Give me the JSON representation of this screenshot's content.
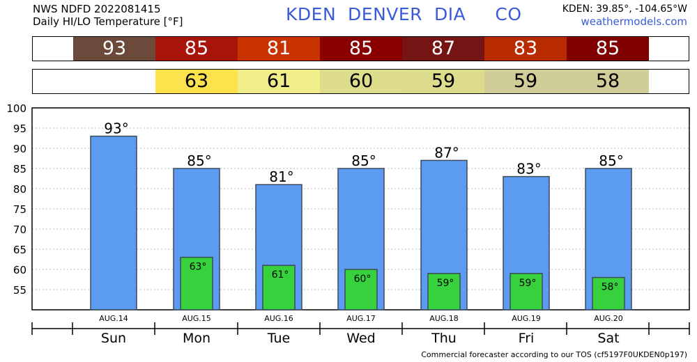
{
  "header": {
    "line1": "NWS NDFD 2022081415",
    "line2": "Daily HI/LO Temperature [°F]",
    "title": "KDEN  DENVER  DIA     CO",
    "coords": "KDEN: 39.85°, -104.65°W",
    "site": "weathermodels.com"
  },
  "hi_strip": [
    {
      "text": "93",
      "color": "#6b4a3c"
    },
    {
      "text": "85",
      "color": "#a8140a"
    },
    {
      "text": "81",
      "color": "#c83200"
    },
    {
      "text": "85",
      "color": "#8a0000"
    },
    {
      "text": "87",
      "color": "#741414"
    },
    {
      "text": "83",
      "color": "#b82a00"
    },
    {
      "text": "85",
      "color": "#800000"
    }
  ],
  "lo_strip": [
    {
      "text": "",
      "color": "#ffffff"
    },
    {
      "text": "63",
      "color": "#fde24e"
    },
    {
      "text": "61",
      "color": "#efee88"
    },
    {
      "text": "60",
      "color": "#dedd8c"
    },
    {
      "text": "59",
      "color": "#dcdc8c"
    },
    {
      "text": "59",
      "color": "#d0cd98"
    },
    {
      "text": "58",
      "color": "#d0cd98"
    }
  ],
  "colors": {
    "hi_bar": "#5b9cf0",
    "lo_bar": "#36d13c",
    "bar_edge": "#3c4a5a",
    "grid": "#bbbbbb"
  },
  "chart_data": {
    "type": "bar",
    "categories": [
      "Sun",
      "Mon",
      "Tue",
      "Wed",
      "Thu",
      "Fri",
      "Sat"
    ],
    "dates": [
      "AUG.14",
      "AUG.15",
      "AUG.16",
      "AUG.17",
      "AUG.18",
      "AUG.19",
      "AUG.20"
    ],
    "series": [
      {
        "name": "HI",
        "values": [
          93,
          85,
          81,
          85,
          87,
          83,
          85
        ],
        "labels": [
          "93°",
          "85°",
          "81°",
          "85°",
          "87°",
          "83°",
          "85°"
        ]
      },
      {
        "name": "LO",
        "values": [
          null,
          63,
          61,
          60,
          59,
          59,
          58
        ],
        "labels": [
          "",
          "63°",
          "61°",
          "60°",
          "59°",
          "59°",
          "58°"
        ]
      }
    ],
    "ylim": [
      50,
      100
    ],
    "yticks": [
      "55",
      "60",
      "65",
      "70",
      "75",
      "80",
      "85",
      "90",
      "95",
      "100"
    ],
    "grid": true
  },
  "footer": "Commercial forecaster according to our TOS (cf5197F0UKDEN0p197)"
}
